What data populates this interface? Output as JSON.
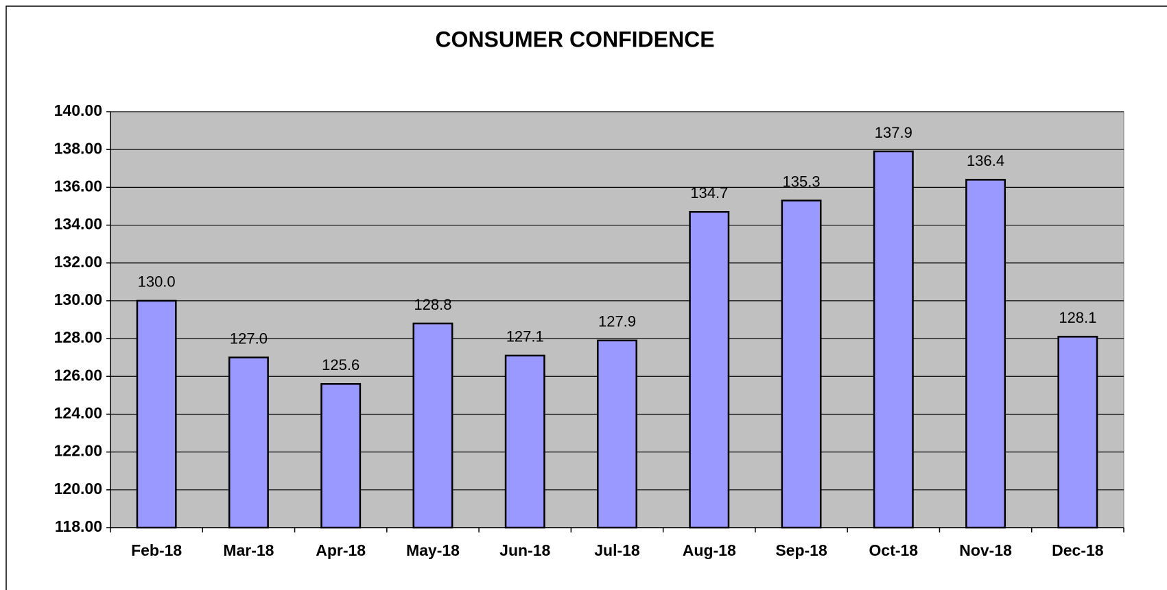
{
  "chart_data": {
    "type": "bar",
    "title": "CONSUMER CONFIDENCE",
    "categories": [
      "Feb-18",
      "Mar-18",
      "Apr-18",
      "May-18",
      "Jun-18",
      "Jul-18",
      "Aug-18",
      "Sep-18",
      "Oct-18",
      "Nov-18",
      "Dec-18"
    ],
    "values": [
      130.0,
      127.0,
      125.6,
      128.8,
      127.1,
      127.9,
      134.7,
      135.3,
      137.9,
      136.4,
      128.1
    ],
    "value_labels": [
      "130.0",
      "127.0",
      "125.6",
      "128.8",
      "127.1",
      "127.9",
      "134.7",
      "135.3",
      "137.9",
      "136.4",
      "128.1"
    ],
    "color": "#9999ff",
    "ylim": [
      118,
      140
    ],
    "yticks": [
      {
        "value": 118,
        "label": "118.00"
      },
      {
        "value": 120,
        "label": "120.00"
      },
      {
        "value": 122,
        "label": "122.00"
      },
      {
        "value": 124,
        "label": "124.00"
      },
      {
        "value": 126,
        "label": "126.00"
      },
      {
        "value": 128,
        "label": "128.00"
      },
      {
        "value": 130,
        "label": "130.00"
      },
      {
        "value": 132,
        "label": "132.00"
      },
      {
        "value": 134,
        "label": "134.00"
      },
      {
        "value": 136,
        "label": "136.00"
      },
      {
        "value": 138,
        "label": "138.00"
      },
      {
        "value": 140,
        "label": "140.00"
      }
    ],
    "grid": true
  }
}
